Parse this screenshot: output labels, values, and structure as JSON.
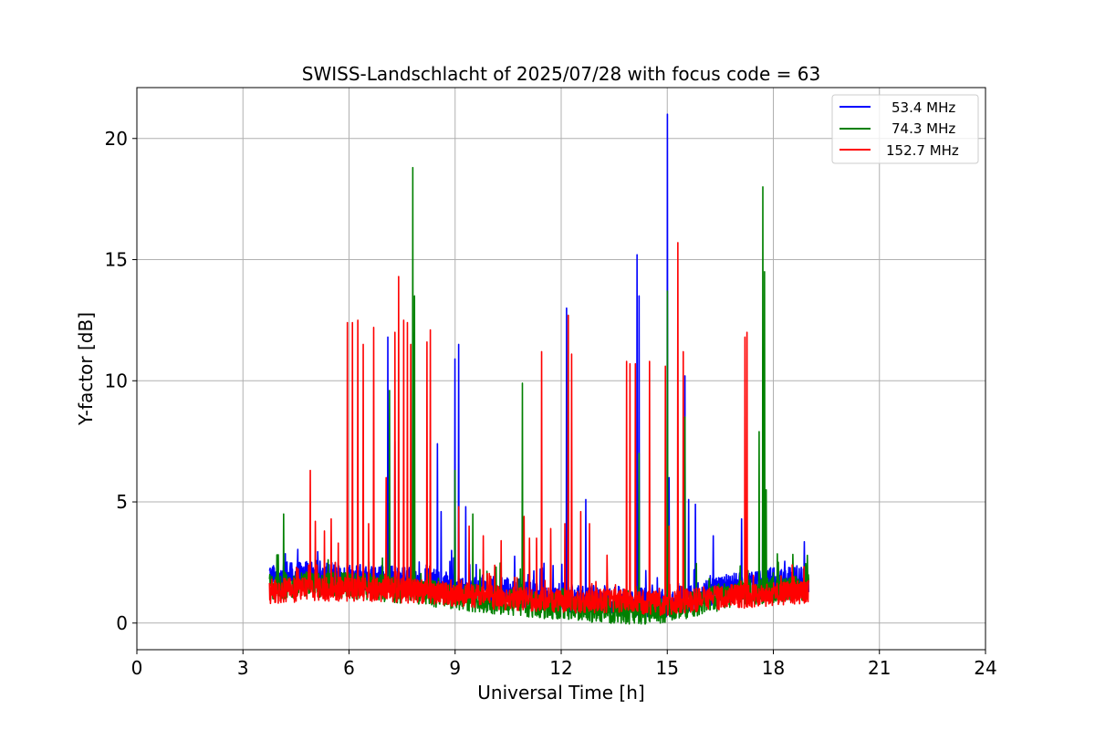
{
  "chart_data": {
    "type": "line",
    "title": "SWISS-Landschlacht of 2025/07/28 with focus code = 63",
    "xlabel": "Universal Time [h]",
    "ylabel": "Y-factor [dB]",
    "xlim": [
      0,
      24
    ],
    "ylim": [
      -1.1,
      22.1
    ],
    "xticks": [
      0,
      3,
      6,
      9,
      12,
      15,
      18,
      21,
      24
    ],
    "yticks": [
      0,
      5,
      10,
      15,
      20
    ],
    "grid": true,
    "legend_position": "top-right",
    "x_range": [
      3.75,
      19.0
    ],
    "series": [
      {
        "name": "53.4 MHz",
        "color": "#0000ff",
        "baseline": [
          [
            3.75,
            1.9
          ],
          [
            5.0,
            2.0
          ],
          [
            6.5,
            1.8
          ],
          [
            8.0,
            1.7
          ],
          [
            9.5,
            1.4
          ],
          [
            11.0,
            1.2
          ],
          [
            12.5,
            1.0
          ],
          [
            14.0,
            0.9
          ],
          [
            15.0,
            0.8
          ],
          [
            16.0,
            1.2
          ],
          [
            17.0,
            1.5
          ],
          [
            18.0,
            1.7
          ],
          [
            19.0,
            1.8
          ]
        ],
        "noise": 0.6,
        "spikes": [
          [
            7.1,
            11.8
          ],
          [
            7.3,
            7.5
          ],
          [
            7.8,
            12.0
          ],
          [
            8.5,
            7.4
          ],
          [
            8.6,
            4.6
          ],
          [
            8.9,
            3.0
          ],
          [
            9.0,
            10.9
          ],
          [
            9.1,
            11.5
          ],
          [
            9.3,
            4.8
          ],
          [
            12.15,
            13.0
          ],
          [
            12.7,
            5.1
          ],
          [
            14.15,
            15.2
          ],
          [
            14.2,
            13.5
          ],
          [
            15.0,
            21.0
          ],
          [
            15.05,
            6.0
          ],
          [
            15.5,
            10.2
          ],
          [
            15.6,
            5.1
          ],
          [
            15.8,
            4.9
          ],
          [
            16.3,
            3.6
          ],
          [
            17.1,
            4.3
          ],
          [
            17.7,
            8.0
          ]
        ]
      },
      {
        "name": "74.3 MHz",
        "color": "#008000",
        "baseline": [
          [
            3.75,
            1.5
          ],
          [
            5.0,
            1.6
          ],
          [
            6.5,
            1.5
          ],
          [
            8.0,
            1.3
          ],
          [
            9.5,
            1.0
          ],
          [
            11.0,
            0.8
          ],
          [
            12.5,
            0.6
          ],
          [
            14.0,
            0.5
          ],
          [
            15.0,
            0.5
          ],
          [
            16.0,
            0.9
          ],
          [
            17.0,
            1.2
          ],
          [
            18.0,
            1.4
          ],
          [
            19.0,
            1.5
          ]
        ],
        "noise": 0.55,
        "spikes": [
          [
            4.15,
            4.5
          ],
          [
            7.15,
            9.6
          ],
          [
            7.8,
            18.8
          ],
          [
            7.85,
            13.5
          ],
          [
            9.0,
            6.3
          ],
          [
            9.5,
            4.5
          ],
          [
            10.9,
            9.9
          ],
          [
            12.2,
            12.7
          ],
          [
            14.2,
            7.0
          ],
          [
            15.0,
            13.7
          ],
          [
            15.5,
            8.5
          ],
          [
            17.6,
            7.9
          ],
          [
            17.7,
            18.0
          ],
          [
            17.75,
            14.5
          ],
          [
            17.8,
            5.5
          ]
        ]
      },
      {
        "name": "152.7 MHz",
        "color": "#ff0000",
        "baseline": [
          [
            3.75,
            1.3
          ],
          [
            5.0,
            1.4
          ],
          [
            6.5,
            1.4
          ],
          [
            8.0,
            1.3
          ],
          [
            9.5,
            1.1
          ],
          [
            11.0,
            1.0
          ],
          [
            12.5,
            0.9
          ],
          [
            14.0,
            0.9
          ],
          [
            15.0,
            0.8
          ],
          [
            16.0,
            1.0
          ],
          [
            17.0,
            1.1
          ],
          [
            18.0,
            1.2
          ],
          [
            19.0,
            1.3
          ]
        ],
        "noise": 0.5,
        "spikes": [
          [
            4.9,
            6.3
          ],
          [
            5.05,
            4.2
          ],
          [
            5.3,
            3.8
          ],
          [
            5.5,
            4.3
          ],
          [
            5.7,
            3.3
          ],
          [
            5.95,
            12.4
          ],
          [
            6.1,
            12.4
          ],
          [
            6.25,
            12.5
          ],
          [
            6.4,
            11.5
          ],
          [
            6.55,
            4.1
          ],
          [
            6.7,
            12.2
          ],
          [
            7.05,
            6.0
          ],
          [
            7.3,
            12.0
          ],
          [
            7.4,
            14.3
          ],
          [
            7.55,
            12.5
          ],
          [
            7.65,
            12.4
          ],
          [
            7.75,
            11.5
          ],
          [
            8.2,
            11.6
          ],
          [
            8.3,
            12.1
          ],
          [
            9.1,
            4.8
          ],
          [
            9.4,
            4.0
          ],
          [
            9.8,
            3.6
          ],
          [
            10.3,
            3.4
          ],
          [
            10.95,
            4.4
          ],
          [
            11.1,
            3.5
          ],
          [
            11.3,
            3.5
          ],
          [
            11.45,
            11.2
          ],
          [
            11.7,
            3.9
          ],
          [
            12.1,
            4.1
          ],
          [
            12.2,
            12.7
          ],
          [
            12.3,
            11.1
          ],
          [
            12.55,
            4.6
          ],
          [
            12.8,
            4.1
          ],
          [
            13.3,
            2.8
          ],
          [
            13.85,
            10.8
          ],
          [
            13.95,
            10.7
          ],
          [
            14.1,
            10.7
          ],
          [
            14.5,
            10.8
          ],
          [
            14.95,
            10.6
          ],
          [
            15.05,
            4.0
          ],
          [
            15.3,
            15.7
          ],
          [
            15.45,
            11.2
          ],
          [
            17.2,
            11.8
          ],
          [
            17.25,
            12.0
          ]
        ]
      }
    ]
  }
}
